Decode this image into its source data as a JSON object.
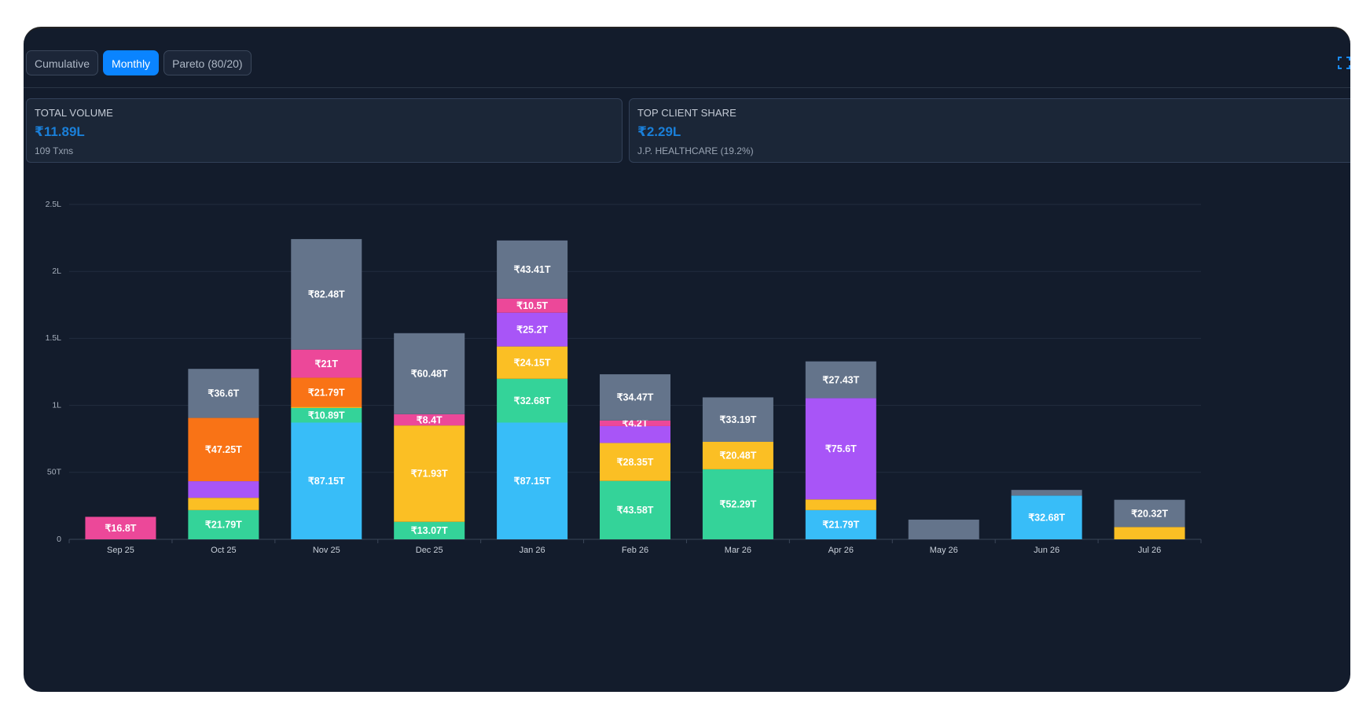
{
  "tabs": [
    {
      "label": "Cumulative",
      "active": false
    },
    {
      "label": "Monthly",
      "active": true
    },
    {
      "label": "Pareto (80/20)",
      "active": false
    }
  ],
  "icons": {
    "fullscreen": "fullscreen-icon"
  },
  "stats": {
    "total": {
      "label": "TOTAL VOLUME",
      "value": "₹11.89L",
      "sub": "109 Txns"
    },
    "top": {
      "label": "TOP CLIENT SHARE",
      "value": "₹2.29L",
      "sub": "J.P. HEALTHCARE (19.2%)"
    }
  },
  "colors": {
    "blue": "#38bdf8",
    "green": "#34d399",
    "yellow": "#fbbf24",
    "orange": "#f97316",
    "purple": "#a855f7",
    "pink": "#ec4899",
    "slate": "#64748b",
    "accent": "#0a84ff",
    "panel": "#131c2c"
  },
  "chart_data": {
    "type": "bar",
    "stacked": true,
    "y_ticks": [
      "0",
      "50T",
      "1L",
      "1.5L",
      "2L",
      "2.5L"
    ],
    "ylim": [
      0,
      250
    ],
    "grid": true,
    "categories": [
      "Sep 25",
      "Oct 25",
      "Nov 25",
      "Dec 25",
      "Jan 26",
      "Feb 26",
      "Mar 26",
      "Apr 26",
      "May 26",
      "Jun 26",
      "Jul 26"
    ],
    "stacks": [
      [
        {
          "color": "pink",
          "value": 16.8,
          "label": "₹16.8T"
        }
      ],
      [
        {
          "color": "green",
          "value": 21.79,
          "label": "₹21.79T"
        },
        {
          "color": "yellow",
          "value": 9.2,
          "label": ""
        },
        {
          "color": "purple",
          "value": 12.4,
          "label": ""
        },
        {
          "color": "orange",
          "value": 47.25,
          "label": "₹47.25T"
        },
        {
          "color": "slate",
          "value": 36.6,
          "label": "₹36.6T"
        }
      ],
      [
        {
          "color": "blue",
          "value": 87.15,
          "label": "₹87.15T"
        },
        {
          "color": "green",
          "value": 10.89,
          "label": "₹10.89T"
        },
        {
          "color": "yellow",
          "value": 0.8,
          "label": ""
        },
        {
          "color": "orange",
          "value": 21.79,
          "label": "₹21.79T"
        },
        {
          "color": "pink",
          "value": 21,
          "label": "₹21T"
        },
        {
          "color": "slate",
          "value": 82.48,
          "label": "₹82.48T"
        }
      ],
      [
        {
          "color": "green",
          "value": 13.07,
          "label": "₹13.07T"
        },
        {
          "color": "yellow",
          "value": 71.93,
          "label": "₹71.93T"
        },
        {
          "color": "pink",
          "value": 8.4,
          "label": "₹8.4T"
        },
        {
          "color": "slate",
          "value": 60.48,
          "label": "₹60.48T"
        }
      ],
      [
        {
          "color": "blue",
          "value": 87.15,
          "label": "₹87.15T"
        },
        {
          "color": "green",
          "value": 32.68,
          "label": "₹32.68T"
        },
        {
          "color": "yellow",
          "value": 24.15,
          "label": "₹24.15T"
        },
        {
          "color": "purple",
          "value": 25.2,
          "label": "₹25.2T"
        },
        {
          "color": "pink",
          "value": 10.5,
          "label": "₹10.5T"
        },
        {
          "color": "slate",
          "value": 43.41,
          "label": "₹43.41T"
        }
      ],
      [
        {
          "color": "green",
          "value": 43.58,
          "label": "₹43.58T"
        },
        {
          "color": "yellow",
          "value": 28.35,
          "label": "₹28.35T"
        },
        {
          "color": "purple",
          "value": 12.6,
          "label": ""
        },
        {
          "color": "pink",
          "value": 4.2,
          "label": "₹4.2T"
        },
        {
          "color": "slate",
          "value": 34.47,
          "label": "₹34.47T"
        }
      ],
      [
        {
          "color": "green",
          "value": 52.29,
          "label": "₹52.29T"
        },
        {
          "color": "yellow",
          "value": 20.48,
          "label": "₹20.48T"
        },
        {
          "color": "slate",
          "value": 33.19,
          "label": "₹33.19T"
        }
      ],
      [
        {
          "color": "blue",
          "value": 21.79,
          "label": "₹21.79T"
        },
        {
          "color": "yellow",
          "value": 8,
          "label": ""
        },
        {
          "color": "purple",
          "value": 75.6,
          "label": "₹75.6T"
        },
        {
          "color": "slate",
          "value": 27.43,
          "label": "₹27.43T"
        }
      ],
      [
        {
          "color": "slate",
          "value": 14.7,
          "label": ""
        }
      ],
      [
        {
          "color": "blue",
          "value": 32.68,
          "label": "₹32.68T"
        },
        {
          "color": "slate",
          "value": 4.2,
          "label": ""
        }
      ],
      [
        {
          "color": "yellow",
          "value": 9.2,
          "label": ""
        },
        {
          "color": "slate",
          "value": 20.32,
          "label": "₹20.32T"
        }
      ]
    ]
  }
}
